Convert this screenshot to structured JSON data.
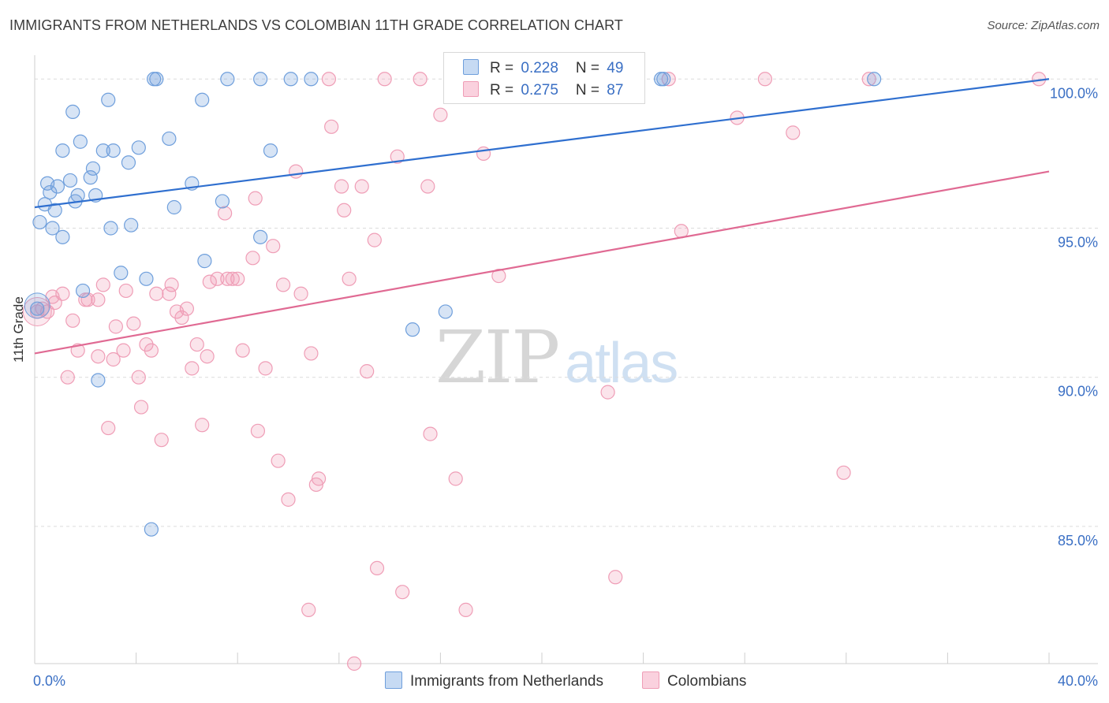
{
  "header": {
    "title": "IMMIGRANTS FROM NETHERLANDS VS COLOMBIAN 11TH GRADE CORRELATION CHART",
    "source": "Source: ZipAtlas.com"
  },
  "watermark": {
    "zip": "ZIP",
    "atlas": "atlas"
  },
  "legend": {
    "series1": {
      "r_label": "R = ",
      "r_value": "0.228",
      "n_label": "N = ",
      "n_value": "49"
    },
    "series2": {
      "r_label": "R = ",
      "r_value": "0.275",
      "n_label": "N = ",
      "n_value": "87"
    }
  },
  "chart_data": {
    "type": "scatter",
    "title": "IMMIGRANTS FROM NETHERLANDS VS COLOMBIAN 11TH GRADE CORRELATION CHART",
    "xlabel": "",
    "ylabel": "11th Grade",
    "xlim": [
      0,
      40
    ],
    "ylim": [
      80.4,
      100.8
    ],
    "x_tick_labels": [
      "0.0%",
      "40.0%"
    ],
    "y_ticks": [
      85,
      90,
      95,
      100
    ],
    "y_tick_labels": [
      "85.0%",
      "90.0%",
      "95.0%",
      "100.0%"
    ],
    "grid": true,
    "legend_position": "top-center",
    "colors": {
      "netherlands": "#6f9fdc",
      "colombians": "#ef9db6",
      "line1": "#2f6fcf",
      "line2": "#e06a93",
      "tick_text": "#3a6fc4"
    },
    "series": [
      {
        "name": "Immigrants from Netherlands",
        "r": 0.228,
        "n": 49,
        "trend": {
          "x": [
            0,
            40
          ],
          "y": [
            95.7,
            100.0
          ]
        },
        "points": [
          [
            0.1,
            92.3
          ],
          [
            0.2,
            95.2
          ],
          [
            0.4,
            95.8
          ],
          [
            0.5,
            96.5
          ],
          [
            0.6,
            96.2
          ],
          [
            0.7,
            95.0
          ],
          [
            0.8,
            95.6
          ],
          [
            0.9,
            96.4
          ],
          [
            1.1,
            94.7
          ],
          [
            1.1,
            97.6
          ],
          [
            1.4,
            96.6
          ],
          [
            1.5,
            98.9
          ],
          [
            1.6,
            95.9
          ],
          [
            1.7,
            96.1
          ],
          [
            1.8,
            97.9
          ],
          [
            1.9,
            92.9
          ],
          [
            2.2,
            96.7
          ],
          [
            2.3,
            97.0
          ],
          [
            2.4,
            96.1
          ],
          [
            2.5,
            89.9
          ],
          [
            2.7,
            97.6
          ],
          [
            2.9,
            99.3
          ],
          [
            3.0,
            95.0
          ],
          [
            3.1,
            97.6
          ],
          [
            3.4,
            93.5
          ],
          [
            3.7,
            97.2
          ],
          [
            3.8,
            95.1
          ],
          [
            4.1,
            97.7
          ],
          [
            4.4,
            93.3
          ],
          [
            4.6,
            84.9
          ],
          [
            4.7,
            100.0
          ],
          [
            4.8,
            100.0
          ],
          [
            5.3,
            98.0
          ],
          [
            5.5,
            95.7
          ],
          [
            6.2,
            96.5
          ],
          [
            6.6,
            99.3
          ],
          [
            6.7,
            93.9
          ],
          [
            7.4,
            95.9
          ],
          [
            7.6,
            100.0
          ],
          [
            8.9,
            94.7
          ],
          [
            8.9,
            100.0
          ],
          [
            9.3,
            97.6
          ],
          [
            10.1,
            100.0
          ],
          [
            10.9,
            100.0
          ],
          [
            14.9,
            91.6
          ],
          [
            16.2,
            92.2
          ],
          [
            24.7,
            100.0
          ],
          [
            24.8,
            100.0
          ],
          [
            33.1,
            100.0
          ]
        ]
      },
      {
        "name": "Colombians",
        "r": 0.275,
        "n": 87,
        "trend": {
          "x": [
            0,
            40
          ],
          "y": [
            90.8,
            96.9
          ]
        },
        "points": [
          [
            0.1,
            92.2
          ],
          [
            0.3,
            92.3
          ],
          [
            0.5,
            92.2
          ],
          [
            0.7,
            92.7
          ],
          [
            0.8,
            92.5
          ],
          [
            1.1,
            92.8
          ],
          [
            1.3,
            90.0
          ],
          [
            1.5,
            91.9
          ],
          [
            1.7,
            90.9
          ],
          [
            2.0,
            92.6
          ],
          [
            2.1,
            92.6
          ],
          [
            2.5,
            92.6
          ],
          [
            2.5,
            90.7
          ],
          [
            2.7,
            93.1
          ],
          [
            2.9,
            88.3
          ],
          [
            3.1,
            90.6
          ],
          [
            3.2,
            91.7
          ],
          [
            3.5,
            90.9
          ],
          [
            3.6,
            92.9
          ],
          [
            3.9,
            91.8
          ],
          [
            4.1,
            90.0
          ],
          [
            4.2,
            89.0
          ],
          [
            4.4,
            91.1
          ],
          [
            4.6,
            90.9
          ],
          [
            4.8,
            92.8
          ],
          [
            5.0,
            87.9
          ],
          [
            5.3,
            92.8
          ],
          [
            5.4,
            93.1
          ],
          [
            5.6,
            92.2
          ],
          [
            5.8,
            92.0
          ],
          [
            6.0,
            92.3
          ],
          [
            6.2,
            90.3
          ],
          [
            6.4,
            91.1
          ],
          [
            6.6,
            88.4
          ],
          [
            6.8,
            90.7
          ],
          [
            6.9,
            93.2
          ],
          [
            7.2,
            93.3
          ],
          [
            7.5,
            95.5
          ],
          [
            7.6,
            93.3
          ],
          [
            7.8,
            93.3
          ],
          [
            8.0,
            93.3
          ],
          [
            8.2,
            90.9
          ],
          [
            8.6,
            94.0
          ],
          [
            8.7,
            96.0
          ],
          [
            8.8,
            88.2
          ],
          [
            9.1,
            90.3
          ],
          [
            9.4,
            94.4
          ],
          [
            9.6,
            87.2
          ],
          [
            9.8,
            93.1
          ],
          [
            10.0,
            85.9
          ],
          [
            10.3,
            96.9
          ],
          [
            10.5,
            92.8
          ],
          [
            10.8,
            82.2
          ],
          [
            10.9,
            90.8
          ],
          [
            11.1,
            86.4
          ],
          [
            11.2,
            86.6
          ],
          [
            11.6,
            100.0
          ],
          [
            11.7,
            98.4
          ],
          [
            12.1,
            96.4
          ],
          [
            12.2,
            95.6
          ],
          [
            12.4,
            93.3
          ],
          [
            12.6,
            80.4
          ],
          [
            12.9,
            96.4
          ],
          [
            13.1,
            90.2
          ],
          [
            13.4,
            94.6
          ],
          [
            13.5,
            83.6
          ],
          [
            13.8,
            100.0
          ],
          [
            14.3,
            97.4
          ],
          [
            14.5,
            82.8
          ],
          [
            15.2,
            100.0
          ],
          [
            15.5,
            96.4
          ],
          [
            15.6,
            88.1
          ],
          [
            16.0,
            98.8
          ],
          [
            16.6,
            86.6
          ],
          [
            17.0,
            82.2
          ],
          [
            17.7,
            97.5
          ],
          [
            18.3,
            93.4
          ],
          [
            22.6,
            89.5
          ],
          [
            22.9,
            83.3
          ],
          [
            25.0,
            100.0
          ],
          [
            25.5,
            94.9
          ],
          [
            27.7,
            98.7
          ],
          [
            28.8,
            100.0
          ],
          [
            29.9,
            98.2
          ],
          [
            31.9,
            86.8
          ],
          [
            32.9,
            100.0
          ],
          [
            39.6,
            100.0
          ]
        ]
      }
    ]
  },
  "bottom_legend": {
    "item1": "Immigrants from Netherlands",
    "item2": "Colombians"
  }
}
